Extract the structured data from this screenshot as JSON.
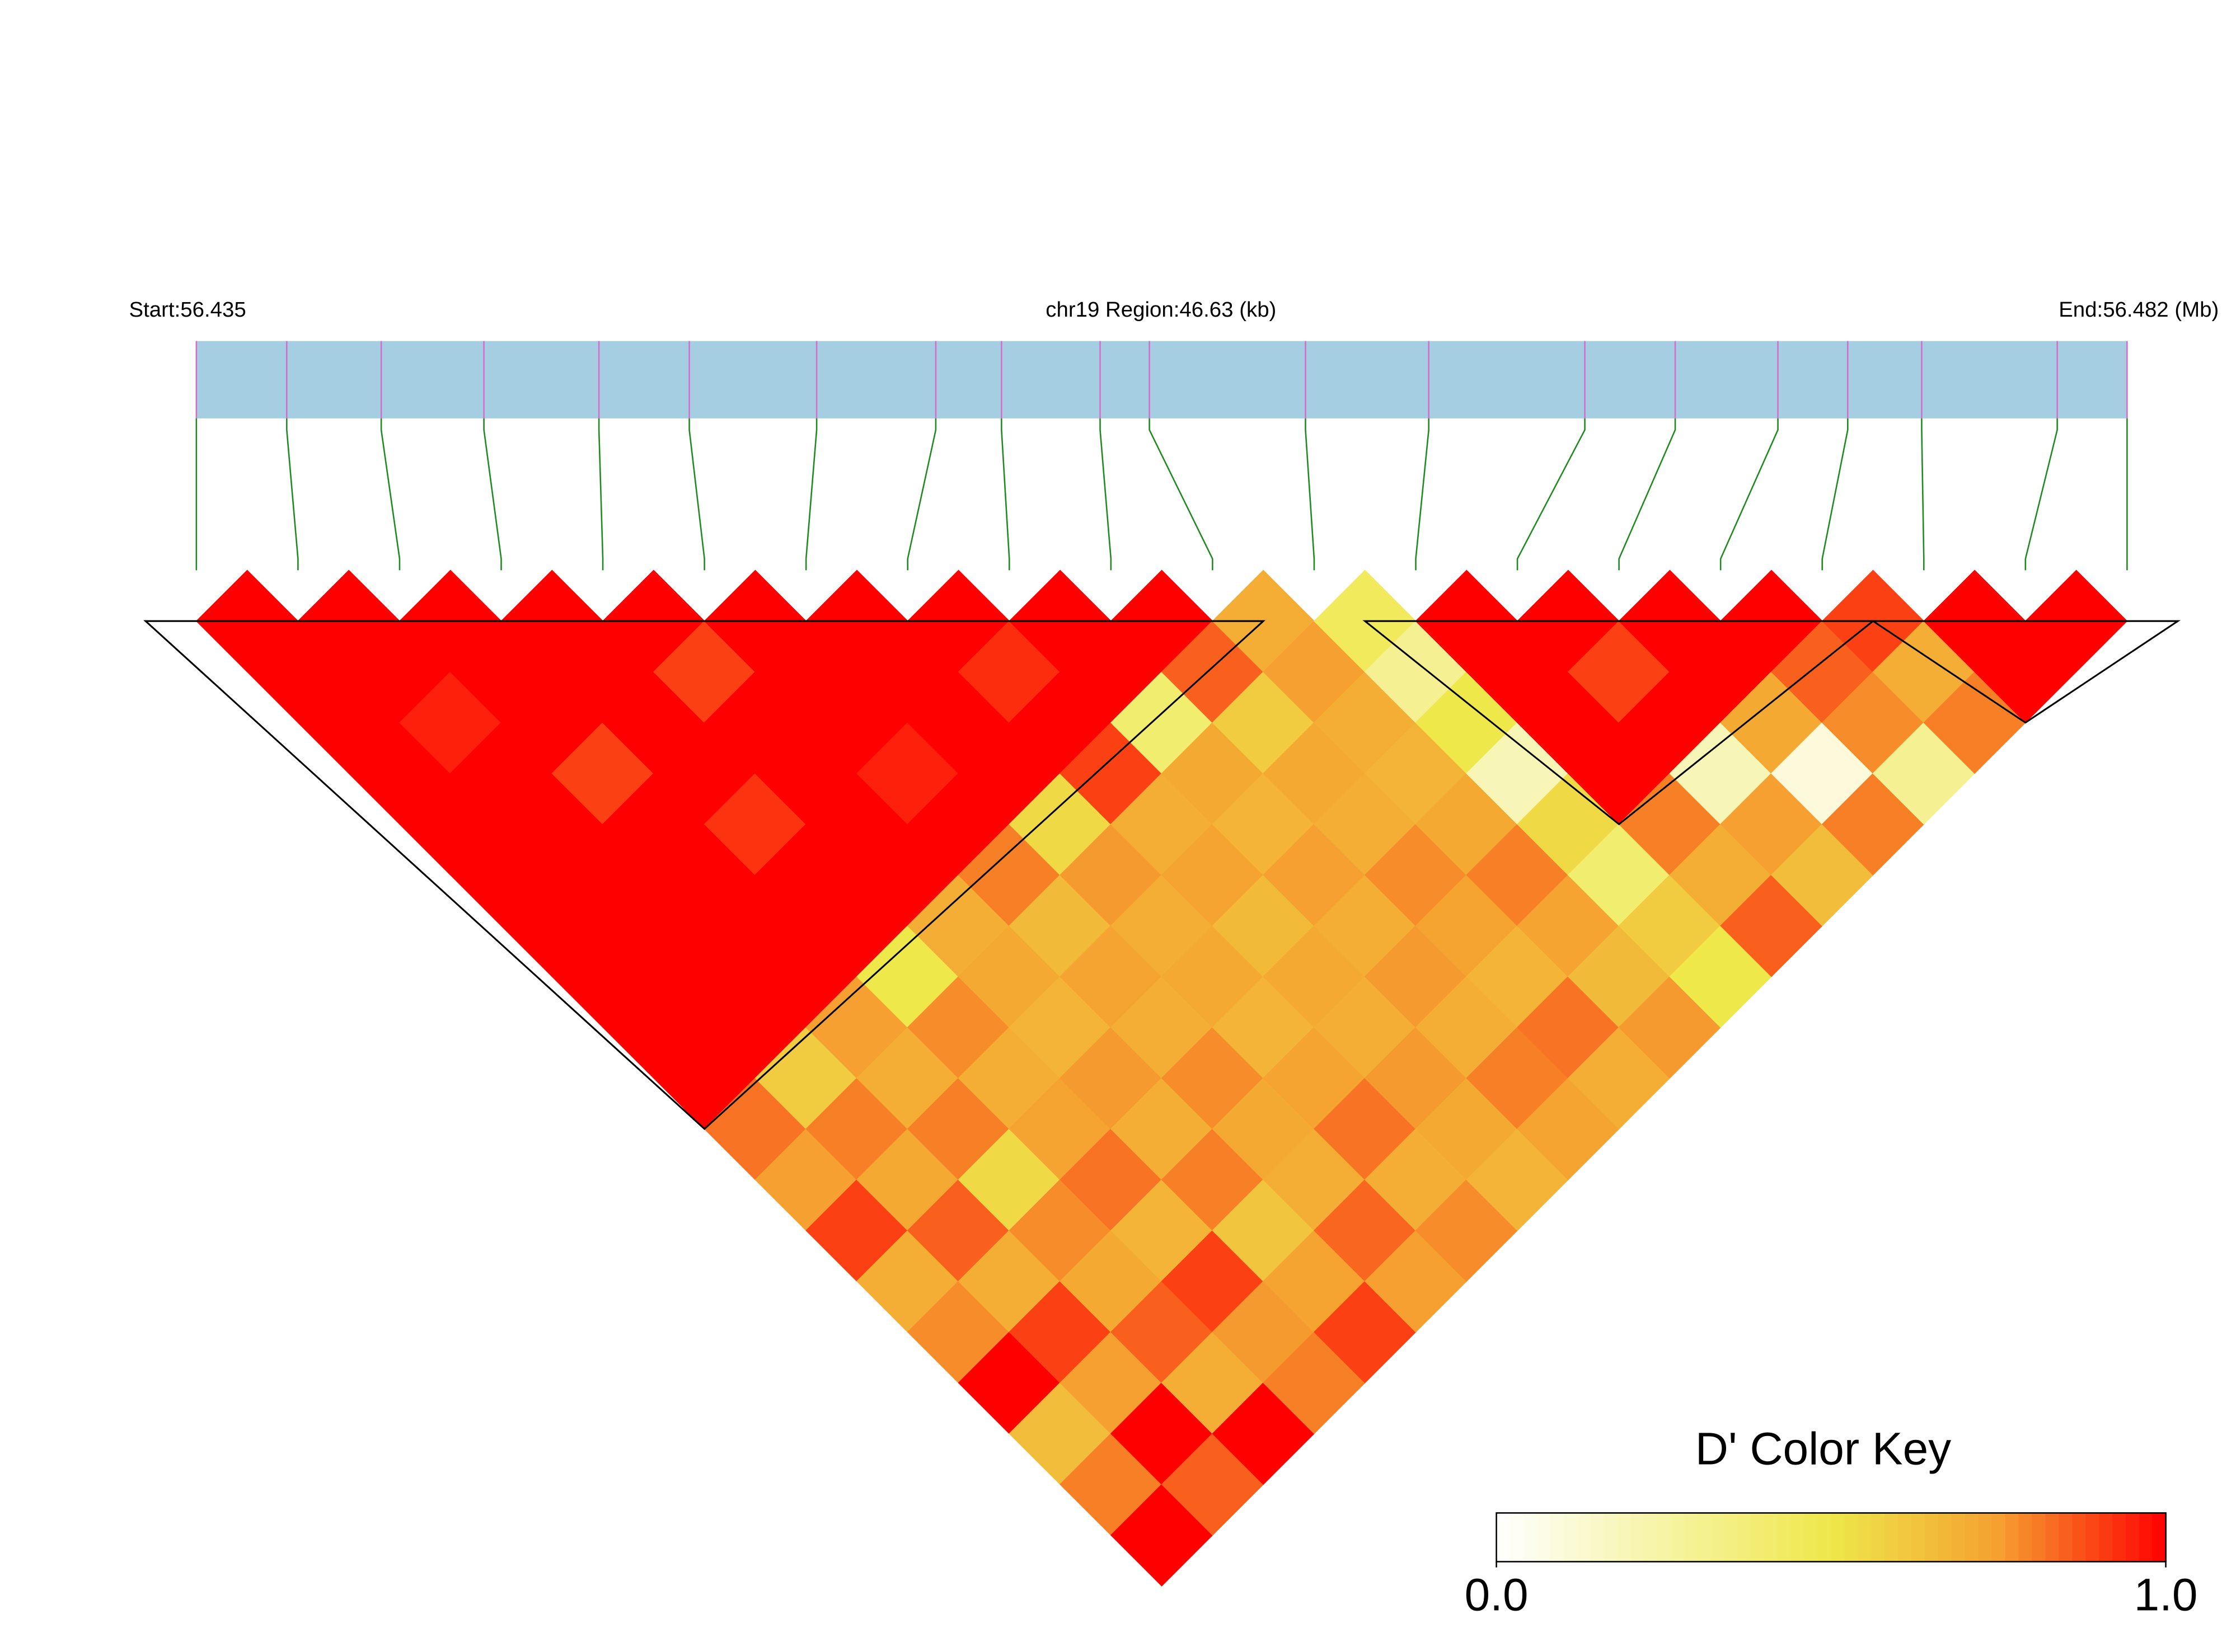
{
  "chart_data": {
    "type": "ld-heatmap",
    "start_label": "Start:56.435",
    "region_label": "chr19 Region:46.63 (kb)",
    "end_label": "End:56.482 (Mb)",
    "xlim": [
      56.435,
      56.482
    ],
    "positions": [
      56.435,
      56.4372,
      56.4395,
      56.442,
      56.4448,
      56.447,
      56.4501,
      56.453,
      56.4546,
      56.457,
      56.4582,
      56.462,
      56.465,
      56.4688,
      56.471,
      56.4735,
      56.4752,
      56.477,
      56.4803,
      56.482
    ],
    "dprime": [
      [
        1,
        1,
        1,
        1,
        1,
        1,
        1,
        1,
        1,
        1,
        0.82,
        0.75,
        0.9,
        0.7,
        0.78,
        1,
        0.65,
        0.8,
        1
      ],
      [
        1,
        1,
        0.95,
        1,
        1,
        1,
        1,
        1,
        1,
        0.6,
        0.8,
        0.72,
        0.85,
        0.7,
        0.9,
        0.75,
        1,
        0.85
      ],
      [
        1,
        1,
        1,
        0.9,
        1,
        1,
        1,
        1,
        0.75,
        0.7,
        0.8,
        0.55,
        0.78,
        0.72,
        0.85,
        0.7,
        1
      ],
      [
        1,
        1,
        1,
        1,
        0.92,
        1,
        1,
        0.5,
        0.78,
        0.7,
        0.74,
        0.82,
        0.68,
        0.9,
        0.76,
        0.8
      ],
      [
        1,
        0.9,
        1,
        1,
        1,
        1,
        0.7,
        0.72,
        0.68,
        0.76,
        0.7,
        0.8,
        0.62,
        0.74,
        0.9
      ],
      [
        1,
        1,
        1,
        0.95,
        1,
        0.8,
        0.66,
        0.74,
        0.7,
        0.78,
        0.72,
        0.7,
        0.84,
        0.75
      ],
      [
        1,
        1,
        1,
        1,
        0.55,
        0.76,
        0.7,
        0.72,
        0.68,
        0.74,
        0.82,
        0.7,
        0.78
      ],
      [
        1,
        0.93,
        1,
        0.9,
        0.7,
        0.74,
        0.66,
        0.72,
        0.7,
        0.76,
        0.72,
        0.68
      ],
      [
        1,
        1,
        0.4,
        0.72,
        0.68,
        0.75,
        0.7,
        0.76,
        0.7,
        0.8,
        0.74
      ],
      [
        1,
        0.85,
        0.6,
        0.72,
        0.7,
        0.78,
        0.74,
        0.68,
        0.82,
        0.7
      ],
      [
        0.7,
        0.75,
        0.7,
        0.68,
        0.72,
        0.8,
        0.74,
        0.66,
        0.76
      ],
      [
        0.45,
        0.3,
        0.5,
        0.2,
        0.55,
        0.4,
        0.6,
        0.5
      ],
      [
        1,
        1,
        1,
        1,
        0.8,
        0.7,
        0.85
      ],
      [
        1,
        0.9,
        1,
        0.2,
        0.75,
        0.65
      ],
      [
        1,
        1,
        0.72,
        0.1,
        0.8
      ],
      [
        1,
        0.85,
        0.78,
        0.3
      ],
      [
        0.9,
        0.7,
        0.8
      ],
      [
        1,
        1
      ],
      [
        1
      ]
    ],
    "blocks": [
      [
        0,
        10
      ],
      [
        12,
        16
      ],
      [
        17,
        19
      ]
    ],
    "color_stops": [
      [
        0,
        "#ffffff"
      ],
      [
        0.5,
        "#eee84a"
      ],
      [
        0.75,
        "#f5a030"
      ],
      [
        1,
        "#ff0000"
      ]
    ],
    "color_key": {
      "title": "D' Color Key",
      "ticks": [
        {
          "value": 0,
          "label": "0.0"
        },
        {
          "value": 1,
          "label": "1.0"
        }
      ]
    }
  }
}
